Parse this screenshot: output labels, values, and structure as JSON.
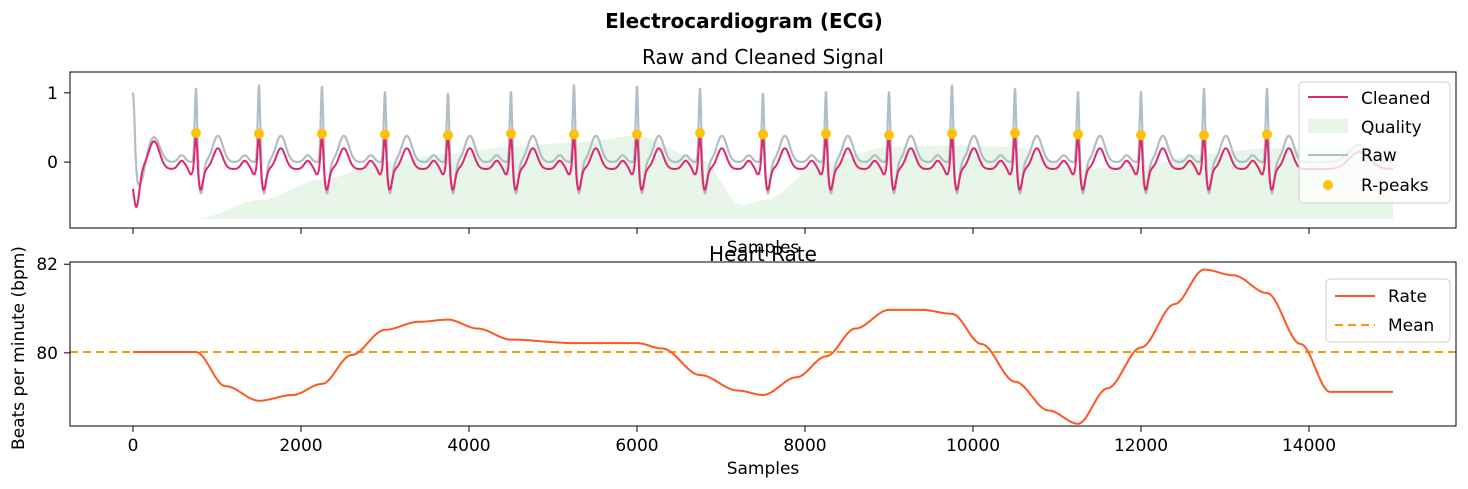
{
  "figure_title": "Electrocardiogram (ECG)",
  "colors": {
    "cleaned": "#E0276E",
    "raw": "#B0BEC5",
    "quality": "#E8F5E9",
    "rpeaks": "#FFC107",
    "rate": "#FF5722",
    "mean": "#FF9800"
  },
  "chart_data": [
    {
      "type": "line",
      "title": "Raw and Cleaned Signal",
      "xlabel": "Samples",
      "ylabel": "",
      "xlim": [
        -750,
        15750
      ],
      "ylim": [
        -0.95,
        1.3
      ],
      "xticks": [
        0,
        2000,
        4000,
        6000,
        8000,
        10000,
        12000,
        14000
      ],
      "yticks": [
        0,
        1
      ],
      "ytick_labels": [
        "0",
        "1"
      ],
      "show_xtick_labels": false,
      "legend": [
        "Cleaned",
        "Quality",
        "Raw",
        "R-peaks"
      ],
      "legend_position": "upper right",
      "rpeaks": {
        "x": [
          750,
          1500,
          2250,
          3000,
          3750,
          4500,
          5250,
          6000,
          6750,
          7500,
          8250,
          9000,
          9750,
          10500,
          11250,
          12000,
          12750,
          13500
        ],
        "y": [
          0.42,
          0.41,
          0.41,
          0.4,
          0.39,
          0.41,
          0.4,
          0.4,
          0.42,
          0.4,
          0.41,
          0.39,
          0.41,
          0.42,
          0.4,
          0.39,
          0.39,
          0.4
        ]
      },
      "raw_peak_heights": [
        1.15,
        1.2,
        1.18,
        1.1,
        1.08,
        1.1,
        1.2,
        1.18,
        1.15,
        1.08,
        1.1,
        1.1,
        1.2,
        1.15,
        1.1,
        1.1,
        1.15,
        1.15
      ],
      "quality": {
        "x": [
          750,
          1500,
          2250,
          3000,
          3750,
          4500,
          5250,
          6000,
          6750,
          7250,
          7500,
          8250,
          9000,
          9750,
          10500,
          11250,
          12000,
          12750,
          13500,
          14250,
          15000
        ],
        "y": [
          -0.82,
          -0.55,
          -0.25,
          0.0,
          0.12,
          0.22,
          0.28,
          0.38,
          0.05,
          -0.62,
          -0.55,
          0.0,
          0.22,
          0.24,
          0.22,
          -0.1,
          -0.05,
          0.12,
          0.2,
          0.22,
          0.22
        ]
      }
    },
    {
      "type": "line",
      "title": "Heart Rate",
      "xlabel": "Samples",
      "ylabel": "Beats per minute (bpm)",
      "xlim": [
        -750,
        15750
      ],
      "ylim": [
        78.35,
        82.05
      ],
      "xticks": [
        0,
        2000,
        4000,
        6000,
        8000,
        10000,
        12000,
        14000
      ],
      "xtick_labels": [
        "0",
        "2000",
        "4000",
        "6000",
        "8000",
        "10000",
        "12000",
        "14000"
      ],
      "yticks": [
        80,
        82
      ],
      "ytick_labels": [
        "80",
        "82"
      ],
      "legend": [
        "Rate",
        "Mean"
      ],
      "legend_position": "upper right",
      "rate": {
        "x": [
          0,
          750,
          1100,
          1500,
          1900,
          2250,
          2600,
          3000,
          3400,
          3750,
          4100,
          4500,
          5250,
          6000,
          6300,
          6750,
          7200,
          7500,
          7900,
          8250,
          8600,
          9000,
          9400,
          9750,
          10100,
          10500,
          10900,
          11250,
          11600,
          12000,
          12400,
          12750,
          13100,
          13500,
          13900,
          14250,
          15000
        ],
        "y": [
          80.02,
          80.02,
          79.25,
          78.92,
          79.05,
          79.3,
          79.95,
          80.52,
          80.7,
          80.75,
          80.55,
          80.3,
          80.22,
          80.22,
          80.1,
          79.5,
          79.15,
          79.05,
          79.45,
          79.92,
          80.55,
          80.97,
          80.97,
          80.88,
          80.2,
          79.35,
          78.7,
          78.4,
          79.2,
          80.12,
          81.1,
          81.88,
          81.75,
          81.35,
          80.2,
          79.12,
          79.12
        ]
      },
      "mean": 80.02
    }
  ]
}
